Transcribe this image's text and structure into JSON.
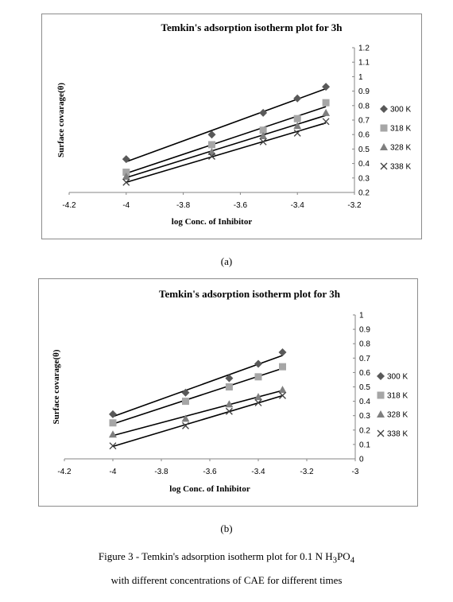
{
  "chart_data": [
    {
      "type": "scatter",
      "title": "Temkin's adsorption isotherm plot for 3h",
      "xlabel": "log Conc. of Inhibitor",
      "ylabel": "Surface covarage(θ)",
      "xlim": [
        -4.2,
        -3.2
      ],
      "ylim": [
        0.2,
        1.2
      ],
      "xticks": [
        -4.2,
        -4,
        -3.8,
        -3.6,
        -3.4,
        -3.2
      ],
      "yticks": [
        0.2,
        0.3,
        0.4,
        0.5,
        0.6,
        0.7,
        0.8,
        0.9,
        1,
        1.1,
        1.2
      ],
      "grid": false,
      "legend_position": "right",
      "trendlines": "linear",
      "series": [
        {
          "name": "300 K",
          "marker": "diamond",
          "x": [
            -4,
            -3.7,
            -3.52,
            -3.4,
            -3.3
          ],
          "y": [
            0.43,
            0.6,
            0.75,
            0.85,
            0.93
          ]
        },
        {
          "name": "318 K",
          "marker": "square",
          "x": [
            -4,
            -3.7,
            -3.52,
            -3.4,
            -3.3
          ],
          "y": [
            0.34,
            0.53,
            0.63,
            0.71,
            0.82
          ]
        },
        {
          "name": "328 K",
          "marker": "triangle",
          "x": [
            -4,
            -3.7,
            -3.52,
            -3.4,
            -3.3
          ],
          "y": [
            0.31,
            0.48,
            0.59,
            0.66,
            0.75
          ]
        },
        {
          "name": "338 K",
          "marker": "x",
          "x": [
            -4,
            -3.7,
            -3.52,
            -3.4,
            -3.3
          ],
          "y": [
            0.27,
            0.45,
            0.55,
            0.61,
            0.69
          ]
        }
      ]
    },
    {
      "type": "scatter",
      "title": "Temkin's adsorption isotherm plot for 3h",
      "xlabel": "log Conc. of Inhibitor",
      "ylabel": "Surface covarage(θ)",
      "xlim": [
        -4.2,
        -3
      ],
      "ylim": [
        0,
        1
      ],
      "xticks": [
        -4.2,
        -4,
        -3.8,
        -3.6,
        -3.4,
        -3.2,
        -3
      ],
      "yticks": [
        0,
        0.1,
        0.2,
        0.3,
        0.4,
        0.5,
        0.6,
        0.7,
        0.8,
        0.9,
        1
      ],
      "grid": false,
      "legend_position": "right",
      "trendlines": "linear",
      "series": [
        {
          "name": "300 K",
          "marker": "diamond",
          "x": [
            -4,
            -3.7,
            -3.52,
            -3.4,
            -3.3
          ],
          "y": [
            0.31,
            0.46,
            0.56,
            0.66,
            0.74
          ]
        },
        {
          "name": "318 K",
          "marker": "square",
          "x": [
            -4,
            -3.7,
            -3.52,
            -3.4,
            -3.3
          ],
          "y": [
            0.25,
            0.4,
            0.5,
            0.57,
            0.64
          ]
        },
        {
          "name": "328 K",
          "marker": "triangle",
          "x": [
            -4,
            -3.7,
            -3.52,
            -3.4,
            -3.3
          ],
          "y": [
            0.17,
            0.28,
            0.38,
            0.43,
            0.48
          ]
        },
        {
          "name": "338 K",
          "marker": "x",
          "x": [
            -4,
            -3.7,
            -3.52,
            -3.4,
            -3.3
          ],
          "y": [
            0.09,
            0.23,
            0.33,
            0.39,
            0.44
          ]
        }
      ]
    }
  ],
  "sublabels": [
    "(a)",
    "(b)"
  ],
  "caption": {
    "line1_pre": "Figure 3 - Temkin's adsorption isotherm plot for 0.1 N H",
    "sub_3": "3",
    "line1_mid": "PO",
    "sub_4": "4",
    "line2": "with different concentrations of CAE for different times"
  },
  "colors": {
    "diamond": "#595959",
    "square": "#a6a6a6",
    "triangle": "#7f7f7f",
    "x": "#404040",
    "trendline": "#000000",
    "axis": "#868686"
  }
}
